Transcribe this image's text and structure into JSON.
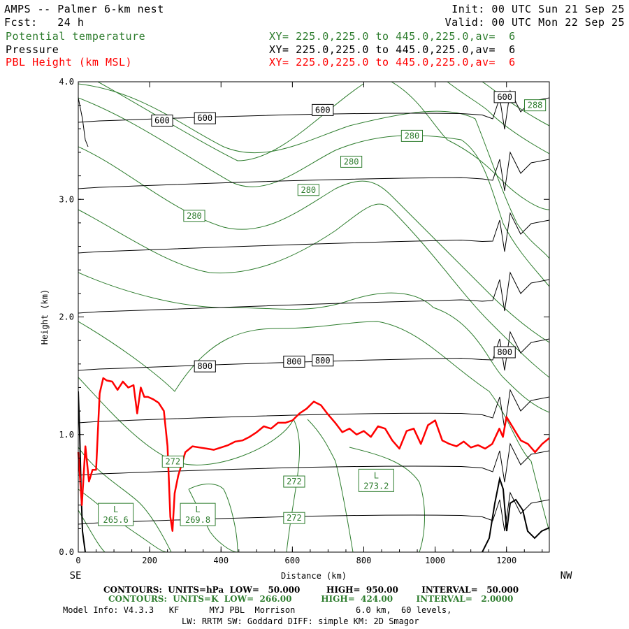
{
  "header": {
    "title": "AMPS -- Palmer 6-km nest",
    "fcst": "Fcst:   24 h",
    "init": "Init: 00 UTC Sun 21 Sep 25",
    "valid": "Valid: 00 UTC Mon 22 Sep 25",
    "fields": [
      {
        "name": "Potential temperature",
        "xy": "XY= 225.0,225.0 to 445.0,225.0,av=  6",
        "color": "#2e7d2e"
      },
      {
        "name": "Pressure",
        "xy": "XY= 225.0,225.0 to 445.0,225.0,av=  6",
        "color": "#000000"
      },
      {
        "name": "PBL Height (km MSL)",
        "xy": "XY= 225.0,225.0 to 445.0,225.0,av=  6",
        "color": "#ff0000"
      }
    ]
  },
  "chart_data": {
    "type": "line",
    "title": "",
    "xlabel": "Distance (km)",
    "ylabel": "Height (km)",
    "xlim": [
      0,
      1320
    ],
    "ylim": [
      0,
      4.0
    ],
    "x_ticks": [
      0,
      200,
      400,
      600,
      800,
      1000,
      1200
    ],
    "y_ticks": [
      "0.0",
      "1.0",
      "2.0",
      "3.0",
      "4.0"
    ],
    "x_end_labels": {
      "left": "SE",
      "right": "NW"
    },
    "pressure_contour_labels": [
      {
        "text": "600",
        "x": 235,
        "y": 3.67
      },
      {
        "text": "600",
        "x": 355,
        "y": 3.69
      },
      {
        "text": "600",
        "x": 685,
        "y": 3.76
      },
      {
        "text": "600",
        "x": 1195,
        "y": 3.87
      },
      {
        "text": "800",
        "x": 355,
        "y": 1.58
      },
      {
        "text": "800",
        "x": 605,
        "y": 1.62
      },
      {
        "text": "800",
        "x": 685,
        "y": 1.63
      },
      {
        "text": "800",
        "x": 1195,
        "y": 1.7
      }
    ],
    "theta_contour_labels": [
      {
        "text": "280",
        "x": 325,
        "y": 2.86
      },
      {
        "text": "280",
        "x": 645,
        "y": 3.08
      },
      {
        "text": "280",
        "x": 765,
        "y": 3.32
      },
      {
        "text": "280",
        "x": 935,
        "y": 3.54
      },
      {
        "text": "288",
        "x": 1280,
        "y": 3.8
      },
      {
        "text": "272",
        "x": 265,
        "y": 0.77
      },
      {
        "text": "272",
        "x": 605,
        "y": 0.6
      },
      {
        "text": "272",
        "x": 605,
        "y": 0.29
      }
    ],
    "theta_extrema": [
      {
        "kind": "L",
        "value": "265.6",
        "x": 105,
        "y": 0.32
      },
      {
        "kind": "L",
        "value": "269.8",
        "x": 335,
        "y": 0.32
      },
      {
        "kind": "L",
        "value": "273.2",
        "x": 835,
        "y": 0.61
      }
    ],
    "series": [
      {
        "name": "PBL Height (km MSL)",
        "color": "#ff0000",
        "x": [
          0,
          10,
          20,
          30,
          40,
          50,
          60,
          70,
          80,
          95,
          110,
          125,
          140,
          155,
          165,
          175,
          185,
          195,
          210,
          225,
          240,
          250,
          258,
          264,
          270,
          280,
          300,
          320,
          340,
          360,
          380,
          400,
          420,
          440,
          460,
          480,
          500,
          520,
          540,
          560,
          580,
          600,
          620,
          640,
          660,
          680,
          700,
          720,
          740,
          760,
          780,
          800,
          820,
          840,
          860,
          880,
          900,
          920,
          940,
          960,
          980,
          1000,
          1020,
          1040,
          1060,
          1080,
          1100,
          1120,
          1140,
          1160,
          1180,
          1190,
          1200,
          1210,
          1220,
          1230,
          1240,
          1260,
          1280,
          1300,
          1320
        ],
        "y": [
          0.85,
          0.4,
          0.9,
          0.6,
          0.7,
          0.7,
          1.35,
          1.48,
          1.46,
          1.45,
          1.38,
          1.45,
          1.4,
          1.42,
          1.18,
          1.4,
          1.32,
          1.32,
          1.3,
          1.27,
          1.2,
          0.9,
          0.3,
          0.18,
          0.5,
          0.65,
          0.85,
          0.9,
          0.89,
          0.88,
          0.87,
          0.89,
          0.91,
          0.94,
          0.95,
          0.98,
          1.02,
          1.07,
          1.05,
          1.1,
          1.1,
          1.12,
          1.18,
          1.22,
          1.28,
          1.25,
          1.17,
          1.1,
          1.02,
          1.05,
          1.0,
          1.03,
          0.98,
          1.07,
          1.05,
          0.95,
          0.88,
          1.03,
          1.05,
          0.92,
          1.08,
          1.12,
          0.95,
          0.92,
          0.9,
          0.94,
          0.89,
          0.91,
          0.88,
          0.92,
          1.05,
          0.98,
          1.15,
          1.1,
          1.05,
          1.0,
          0.95,
          0.92,
          0.85,
          0.92,
          0.97
        ]
      }
    ]
  },
  "footer": {
    "line1": "CONTOURS:  UNITS=hPa  LOW=   50.000         HIGH=  950.00        INTERVAL=   50.000",
    "line2": "CONTOURS:  UNITS=K  LOW=  266.00          HIGH=  424.00        INTERVAL=   2.0000",
    "line3": "Model Info: V4.3.3   KF      MYJ PBL  Morrison            6.0 km,  60 levels,",
    "line4": "LW: RRTM SW: Goddard DIFF: simple KM: 2D Smagor"
  },
  "colors": {
    "theta": "#2e7d2e",
    "pressure": "#000000",
    "pbl": "#ff0000",
    "terrain": "#000000"
  }
}
